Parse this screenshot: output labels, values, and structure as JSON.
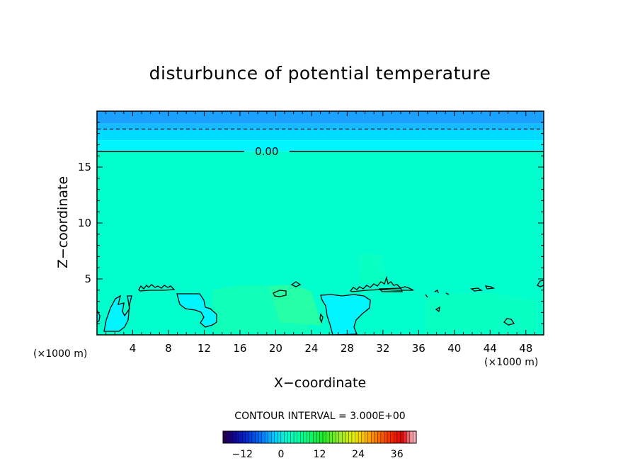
{
  "chart_data": {
    "type": "heatmap",
    "title": "disturbunce of potential temperature",
    "xlabel": "X−coordinate",
    "ylabel": "Z−coordinate",
    "x_unit": "(×1000 m)",
    "z_unit": "(×1000 m)",
    "xlim": [
      0,
      50
    ],
    "ylim": [
      0,
      20
    ],
    "x_ticks": [
      {
        "value": 4,
        "label": "4"
      },
      {
        "value": 8,
        "label": "8"
      },
      {
        "value": 12,
        "label": "12"
      },
      {
        "value": 16,
        "label": "16"
      },
      {
        "value": 20,
        "label": "20"
      },
      {
        "value": 24,
        "label": "24"
      },
      {
        "value": 28,
        "label": "28"
      },
      {
        "value": 32,
        "label": "32"
      },
      {
        "value": 36,
        "label": "36"
      },
      {
        "value": 40,
        "label": "40"
      },
      {
        "value": 44,
        "label": "44"
      },
      {
        "value": 48,
        "label": "48"
      }
    ],
    "y_ticks": [
      {
        "value": 5,
        "label": "5"
      },
      {
        "value": 10,
        "label": "10"
      },
      {
        "value": 15,
        "label": "15"
      }
    ],
    "contour_interval_label": "CONTOUR INTERVAL = 3.000E+00",
    "contour_label": "0.00",
    "zero_contour_z": 16.4,
    "negative_contour_z": 18.4,
    "bands": [
      {
        "z0": 18.9,
        "z1": 20.0,
        "color": "#1aa0ff"
      },
      {
        "z0": 18.3,
        "z1": 18.9,
        "color": "#14bbff"
      },
      {
        "z0": 17.4,
        "z1": 18.3,
        "color": "#00dcff"
      },
      {
        "z0": 16.4,
        "z1": 17.4,
        "color": "#00f6ff"
      },
      {
        "z0": 0.0,
        "z1": 16.4,
        "color": "#00ffcc"
      }
    ],
    "colorbar": {
      "min": -18,
      "max": 42,
      "ticks": [
        {
          "value": -12,
          "label": "−12"
        },
        {
          "value": 0,
          "label": "0"
        },
        {
          "value": 12,
          "label": "12"
        },
        {
          "value": 24,
          "label": "24"
        },
        {
          "value": 36,
          "label": "36"
        }
      ]
    }
  }
}
